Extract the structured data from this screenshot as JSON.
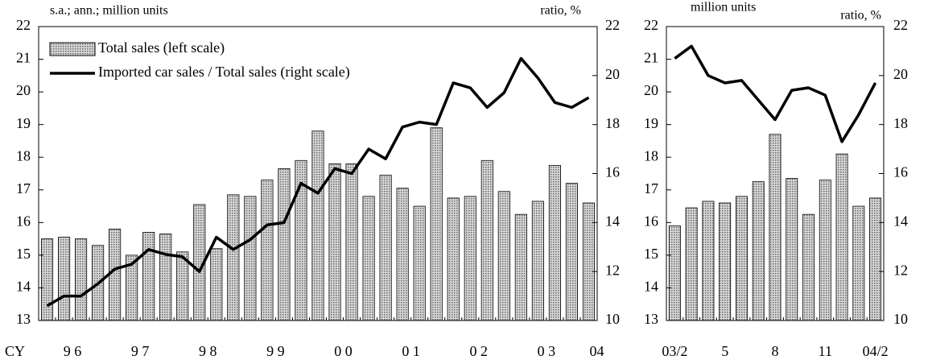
{
  "chart_data": [
    {
      "type": "bar_line",
      "y_label": "s.a.; ann.; million units",
      "y2_label": "ratio, %",
      "x_label": "CY",
      "categories": [
        null,
        "9 6",
        null,
        null,
        null,
        "9 7",
        null,
        null,
        null,
        "9 8",
        null,
        null,
        null,
        "9 9",
        null,
        null,
        null,
        "0 0",
        null,
        null,
        null,
        "0 1",
        null,
        null,
        null,
        "0 2",
        null,
        null,
        null,
        "0 3",
        null,
        null,
        "04"
      ],
      "series": [
        {
          "name": "Total sales (left scale)",
          "color": "#9a9a9a",
          "kind": "bar",
          "values": [
            15.5,
            15.55,
            15.5,
            15.3,
            15.8,
            15.0,
            15.7,
            15.65,
            15.1,
            16.55,
            15.2,
            16.85,
            16.8,
            17.3,
            17.65,
            17.9,
            18.8,
            17.8,
            17.8,
            16.8,
            17.45,
            17.05,
            16.5,
            18.9,
            16.75,
            16.8,
            17.9,
            16.95,
            16.25,
            16.65,
            17.75,
            17.2,
            16.6
          ]
        },
        {
          "name": "Imported car sales / Total sales (right scale)",
          "color": "#000000",
          "kind": "line",
          "axis": "y2",
          "values": [
            10.6,
            11.0,
            11.0,
            11.5,
            12.1,
            12.3,
            12.9,
            12.7,
            12.6,
            12.0,
            13.4,
            12.9,
            13.3,
            13.9,
            14.0,
            15.6,
            15.2,
            16.2,
            16.0,
            17.0,
            16.6,
            17.9,
            18.1,
            18.0,
            19.7,
            19.5,
            18.7,
            19.3,
            20.7,
            19.9,
            18.9,
            18.7,
            19.1
          ]
        }
      ],
      "ylim": [
        13,
        22
      ],
      "yticks": [
        13,
        14,
        15,
        16,
        17,
        18,
        19,
        20,
        21,
        22
      ],
      "y2lim": [
        10,
        22
      ],
      "y2ticks": [
        10,
        12,
        14,
        16,
        18,
        20,
        22
      ],
      "legend": "upper left"
    },
    {
      "type": "bar_line",
      "y_label": "million units",
      "y2_label": "ratio, %",
      "categories": [
        "03/2",
        null,
        null,
        "5",
        null,
        null,
        "8",
        null,
        null,
        "11",
        null,
        null,
        "04/2"
      ],
      "series": [
        {
          "color": "#9a9a9a",
          "kind": "bar",
          "values": [
            15.9,
            16.45,
            16.65,
            16.6,
            16.8,
            17.25,
            18.7,
            17.35,
            16.25,
            17.3,
            18.1,
            16.5,
            16.75
          ]
        },
        {
          "color": "#000000",
          "kind": "line",
          "axis": "y2",
          "values": [
            20.7,
            21.2,
            20.0,
            19.7,
            19.8,
            19.0,
            18.2,
            19.4,
            19.5,
            19.2,
            17.3,
            18.4,
            19.7
          ]
        }
      ],
      "ylim": [
        13,
        22
      ],
      "yticks": [
        13,
        14,
        15,
        16,
        17,
        18,
        19,
        20,
        21,
        22
      ],
      "y2lim": [
        10,
        22
      ],
      "y2ticks": [
        10,
        12,
        14,
        16,
        18,
        20,
        22
      ]
    }
  ]
}
